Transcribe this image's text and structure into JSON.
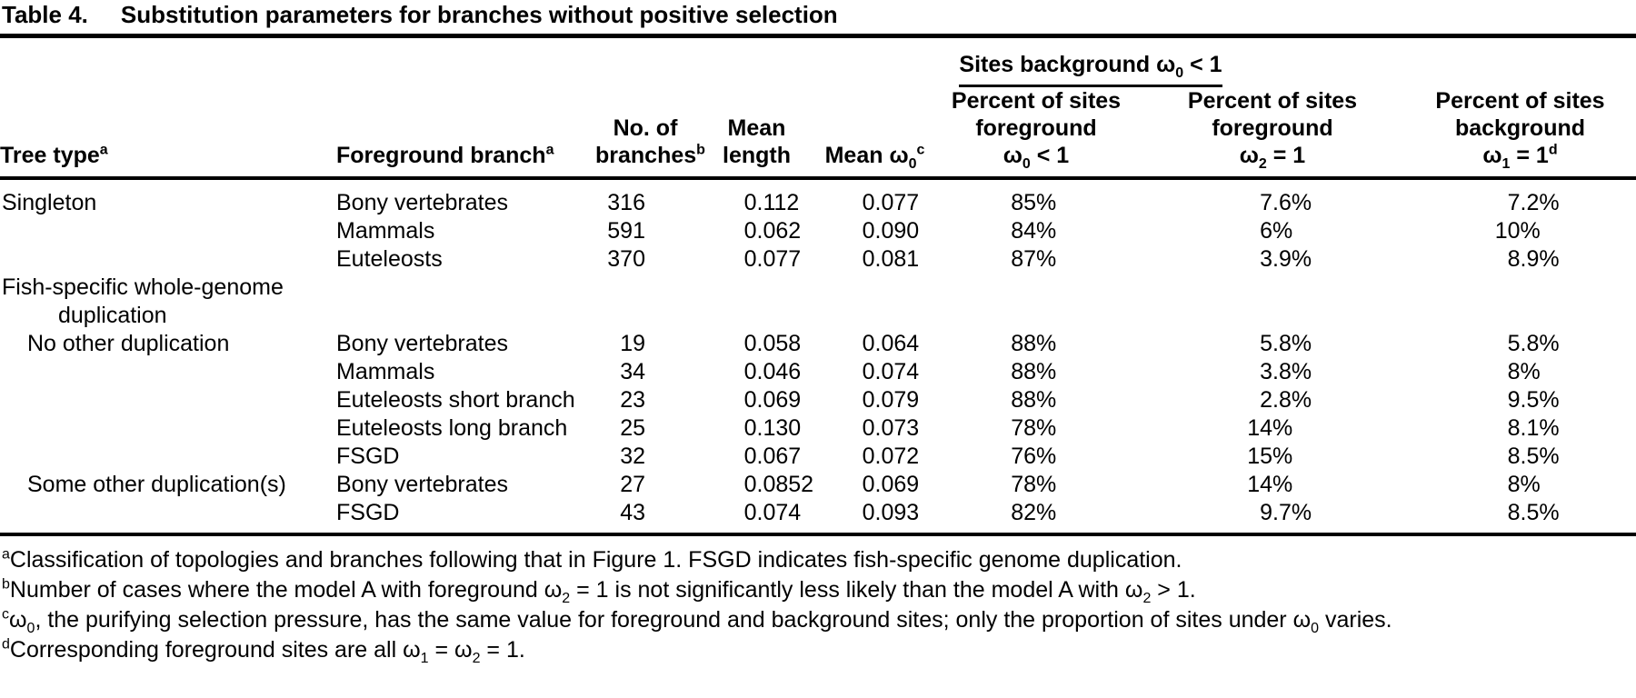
{
  "colors": {
    "text": "#000000",
    "background": "#ffffff",
    "rule": "#000000"
  },
  "table": {
    "label": "Table 4.",
    "title": "Substitution parameters for branches without positive selection",
    "spanner": [
      {
        "t": "Sites background "
      },
      {
        "t": "ω"
      },
      {
        "t": "0",
        "s": "sub"
      },
      {
        "t": " < 1"
      }
    ],
    "headers": {
      "tree_type": [
        [
          {
            "t": "Tree type"
          },
          {
            "t": "a",
            "s": "sup"
          }
        ]
      ],
      "foreground_branch": [
        [
          {
            "t": "Foreground branch"
          },
          {
            "t": "a",
            "s": "sup"
          }
        ]
      ],
      "no_of_branches": [
        [
          {
            "t": "No. of"
          }
        ],
        [
          {
            "t": "branches"
          },
          {
            "t": "b",
            "s": "sup"
          }
        ]
      ],
      "mean_length": [
        [
          {
            "t": "Mean"
          }
        ],
        [
          {
            "t": "length"
          }
        ]
      ],
      "mean_omega0": [
        [
          {
            "t": "Mean "
          },
          {
            "t": "ω"
          },
          {
            "t": "0",
            "s": "sub"
          },
          {
            "t": "c",
            "s": "sup"
          }
        ]
      ],
      "pct_fg_omega0": [
        [
          {
            "t": "Percent of sites"
          }
        ],
        [
          {
            "t": "foreground"
          }
        ],
        [
          {
            "t": "ω"
          },
          {
            "t": "0",
            "s": "sub"
          },
          {
            "t": " < 1"
          }
        ]
      ],
      "pct_fg_omega2": [
        [
          {
            "t": "Percent of sites"
          }
        ],
        [
          {
            "t": "foreground"
          }
        ],
        [
          {
            "t": "ω"
          },
          {
            "t": "2",
            "s": "sub"
          },
          {
            "t": " = 1"
          }
        ]
      ],
      "pct_bg_omega1": [
        [
          {
            "t": "Percent of sites"
          }
        ],
        [
          {
            "t": "background"
          }
        ],
        [
          {
            "t": "ω"
          },
          {
            "t": "1",
            "s": "sub"
          },
          {
            "t": " = 1"
          },
          {
            "t": "d",
            "s": "sup"
          }
        ]
      ]
    },
    "rows": [
      {
        "tree": "Singleton",
        "branch": "Bony vertebrates",
        "n": "316",
        "len": "0.112",
        "w0": "0.077",
        "p1": "85%",
        "p2": "7.6%",
        "p3": "7.2%"
      },
      {
        "branch": "Mammals",
        "n": "591",
        "len": "0.062",
        "w0": "0.090",
        "p1": "84%",
        "p2": "6%",
        "p3": "10%"
      },
      {
        "branch": "Euteleosts",
        "n": "370",
        "len": "0.077",
        "w0": "0.081",
        "p1": "87%",
        "p2": "3.9%",
        "p3": "8.9%"
      },
      {
        "tree": "Fish-specific whole-genome",
        "tree2": "duplication",
        "group": true
      },
      {
        "tree": "No other duplication",
        "indent": true,
        "branch": "Bony vertebrates",
        "n": "19",
        "len": "0.058",
        "w0": "0.064",
        "p1": "88%",
        "p2": "5.8%",
        "p3": "5.8%"
      },
      {
        "branch": "Mammals",
        "n": "34",
        "len": "0.046",
        "w0": "0.074",
        "p1": "88%",
        "p2": "3.8%",
        "p3": "8%"
      },
      {
        "branch": "Euteleosts short branch",
        "n": "23",
        "len": "0.069",
        "w0": "0.079",
        "p1": "88%",
        "p2": "2.8%",
        "p3": "9.5%"
      },
      {
        "branch": "Euteleosts long branch",
        "n": "25",
        "len": "0.130",
        "w0": "0.073",
        "p1": "78%",
        "p2": "14%",
        "p3": "8.1%"
      },
      {
        "branch": "FSGD",
        "n": "32",
        "len": "0.067",
        "w0": "0.072",
        "p1": "76%",
        "p2": "15%",
        "p3": "8.5%"
      },
      {
        "tree": "Some other duplication(s)",
        "indent": true,
        "branch": "Bony vertebrates",
        "n": "27",
        "len": "0.0852",
        "w0": "0.069",
        "p1": "78%",
        "p2": "14%",
        "p3": "8%"
      },
      {
        "branch": "FSGD",
        "n": "43",
        "len": "0.074",
        "w0": "0.093",
        "p1": "82%",
        "p2": "9.7%",
        "p3": "8.5%"
      }
    ]
  },
  "footnotes": [
    [
      {
        "t": "a",
        "s": "sup"
      },
      {
        "t": "Classification of topologies and branches following that in Figure 1. FSGD indicates fish-specific genome duplication."
      }
    ],
    [
      {
        "t": "b",
        "s": "sup"
      },
      {
        "t": "Number of cases where the model A with foreground "
      },
      {
        "t": "ω"
      },
      {
        "t": "2",
        "s": "sub"
      },
      {
        "t": " = 1 is not significantly less likely than the model A with "
      },
      {
        "t": "ω"
      },
      {
        "t": "2",
        "s": "sub"
      },
      {
        "t": " > 1."
      }
    ],
    [
      {
        "t": "c",
        "s": "sup"
      },
      {
        "t": "ω"
      },
      {
        "t": "0",
        "s": "sub"
      },
      {
        "t": ", the purifying selection pressure, has the same value for foreground and background sites; only the proportion of sites under "
      },
      {
        "t": "ω"
      },
      {
        "t": "0",
        "s": "sub"
      },
      {
        "t": " varies."
      }
    ],
    [
      {
        "t": "d",
        "s": "sup"
      },
      {
        "t": "Corresponding foreground sites are all "
      },
      {
        "t": "ω"
      },
      {
        "t": "1",
        "s": "sub"
      },
      {
        "t": " = "
      },
      {
        "t": "ω"
      },
      {
        "t": "2",
        "s": "sub"
      },
      {
        "t": " = 1."
      }
    ]
  ]
}
